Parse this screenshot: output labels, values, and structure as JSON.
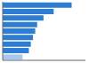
{
  "chart_data": {
    "type": "bar",
    "orientation": "horizontal",
    "categories": [
      null,
      null,
      null,
      null,
      null,
      null,
      null,
      null,
      null
    ],
    "values": [
      250,
      185,
      148,
      125,
      118,
      110,
      102,
      95,
      72
    ],
    "colors": [
      "#2d7dd2",
      "#2d7dd2",
      "#2d7dd2",
      "#2d7dd2",
      "#2d7dd2",
      "#2d7dd2",
      "#2d7dd2",
      "#2d7dd2",
      "#a8c8f0"
    ],
    "xlim": [
      0,
      300
    ],
    "tick_labels": false
  }
}
